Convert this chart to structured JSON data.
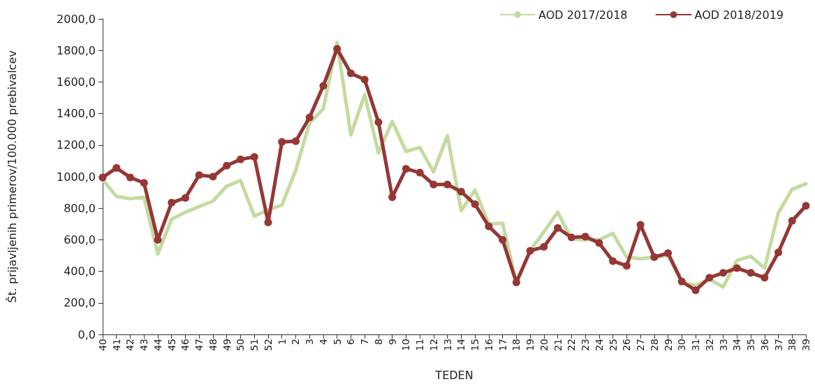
{
  "chart_data": {
    "type": "line",
    "xlabel": "TEDEN",
    "ylabel": "Št. prijavljenih primerov/100.000 prebivalcev",
    "categories": [
      "40",
      "41",
      "42",
      "43",
      "44",
      "45",
      "46",
      "47",
      "48",
      "49",
      "50",
      "51",
      "52",
      "1",
      "2",
      "3",
      "4",
      "5",
      "6",
      "7",
      "8",
      "9",
      "10",
      "11",
      "12",
      "13",
      "14",
      "15",
      "16",
      "17",
      "18",
      "19",
      "20",
      "21",
      "22",
      "23",
      "24",
      "25",
      "26",
      "27",
      "28",
      "29",
      "30",
      "31",
      "32",
      "33",
      "34",
      "35",
      "36",
      "37",
      "38",
      "39"
    ],
    "series": [
      {
        "name": "AOD 2017/2018",
        "color": "#c4dba0",
        "marker": "none",
        "values": [
          980,
          875,
          860,
          870,
          510,
          730,
          775,
          810,
          845,
          940,
          975,
          750,
          790,
          820,
          1040,
          1340,
          1430,
          1850,
          1265,
          1520,
          1150,
          1350,
          1160,
          1185,
          1030,
          1260,
          785,
          915,
          700,
          705,
          330,
          530,
          650,
          775,
          605,
          600,
          600,
          640,
          490,
          480,
          490,
          500,
          330,
          310,
          350,
          300,
          470,
          495,
          420,
          770,
          920,
          955
        ]
      },
      {
        "name": "AOD 2018/2019",
        "color": "#953735",
        "marker": "circle",
        "values": [
          995,
          1055,
          995,
          960,
          600,
          835,
          865,
          1010,
          1000,
          1070,
          1110,
          1125,
          710,
          1220,
          1225,
          1375,
          1575,
          1810,
          1655,
          1615,
          1345,
          870,
          1050,
          1025,
          950,
          950,
          905,
          825,
          685,
          600,
          330,
          530,
          555,
          675,
          615,
          620,
          580,
          465,
          435,
          695,
          490,
          515,
          335,
          280,
          360,
          390,
          420,
          390,
          360,
          520,
          720,
          815
        ]
      }
    ],
    "ylim": [
      0,
      2000
    ],
    "yticks": [
      {
        "value": 0,
        "label": "0,0"
      },
      {
        "value": 200,
        "label": "200,0"
      },
      {
        "value": 400,
        "label": "400,0"
      },
      {
        "value": 600,
        "label": "600,0"
      },
      {
        "value": 800,
        "label": "800,0"
      },
      {
        "value": 1000,
        "label": "1000,0"
      },
      {
        "value": 1200,
        "label": "1200,0"
      },
      {
        "value": 1400,
        "label": "1400,0"
      },
      {
        "value": 1600,
        "label": "1600,0"
      },
      {
        "value": 1800,
        "label": "1800,0"
      },
      {
        "value": 2000,
        "label": "2000,0"
      }
    ],
    "grid": false,
    "legend": "top right",
    "line_style": "solid"
  }
}
